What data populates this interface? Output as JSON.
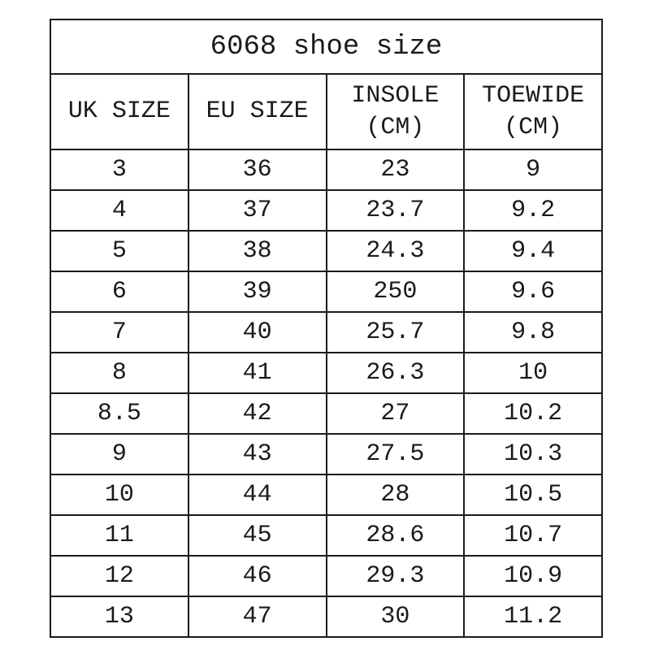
{
  "page": {
    "background_color": "#ffffff",
    "border_color": "#1b1b1b",
    "text_color": "#1a1a1a"
  },
  "chart_data": {
    "type": "table",
    "title": "6068 shoe size",
    "columns": [
      "UK SIZE",
      "EU SIZE",
      "INSOLE (CM)",
      "TOEWIDE (CM)"
    ],
    "rows": [
      [
        "3",
        "36",
        "23",
        "9"
      ],
      [
        "4",
        "37",
        "23.7",
        "9.2"
      ],
      [
        "5",
        "38",
        "24.3",
        "9.4"
      ],
      [
        "6",
        "39",
        "250",
        "9.6"
      ],
      [
        "7",
        "40",
        "25.7",
        "9.8"
      ],
      [
        "8",
        "41",
        "26.3",
        "10"
      ],
      [
        "8.5",
        "42",
        "27",
        "10.2"
      ],
      [
        "9",
        "43",
        "27.5",
        "10.3"
      ],
      [
        "10",
        "44",
        "28",
        "10.5"
      ],
      [
        "11",
        "45",
        "28.6",
        "10.7"
      ],
      [
        "12",
        "46",
        "29.3",
        "10.9"
      ],
      [
        "13",
        "47",
        "30",
        "11.2"
      ]
    ]
  },
  "header_display": [
    {
      "line1": "UK SIZE",
      "line2": ""
    },
    {
      "line1": "EU SIZE",
      "line2": ""
    },
    {
      "line1": "INSOLE",
      "line2": "(CM)"
    },
    {
      "line1": "TOEWIDE",
      "line2": "(CM)"
    }
  ]
}
